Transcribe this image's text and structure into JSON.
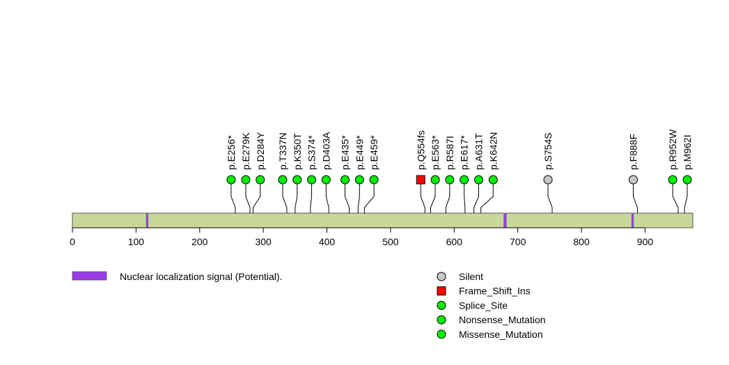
{
  "chart_data": {
    "type": "lollipop",
    "title": "",
    "xlabel": "",
    "ylabel": "",
    "protein_length": 975,
    "xlim": [
      0,
      975
    ],
    "ticks": [
      0,
      100,
      200,
      300,
      400,
      500,
      600,
      700,
      800,
      900
    ],
    "tick_labels": [
      "0",
      "100",
      "200",
      "300",
      "400",
      "500",
      "600",
      "700",
      "800",
      "900"
    ],
    "grid": false,
    "protein_color": "#c8d89b",
    "domains": [
      {
        "start": 116,
        "end": 119,
        "name": "Nuclear localization signal (Potential).",
        "color": "#9c3be8"
      },
      {
        "start": 678,
        "end": 682,
        "name": "Nuclear localization signal (Potential).",
        "color": "#9c3be8"
      },
      {
        "start": 879,
        "end": 882,
        "name": "Nuclear localization signal (Potential).",
        "color": "#9c3be8"
      }
    ],
    "domain_legend": [
      {
        "label": "Nuclear localization signal (Potential).",
        "color": "#9c3be8"
      }
    ],
    "mutations": [
      {
        "label": "p.E256*",
        "position": 256,
        "type": "Nonsense_Mutation"
      },
      {
        "label": "p.E279K",
        "position": 279,
        "type": "Missense_Mutation"
      },
      {
        "label": "p.D284Y",
        "position": 284,
        "type": "Missense_Mutation"
      },
      {
        "label": "p.T337N",
        "position": 337,
        "type": "Missense_Mutation"
      },
      {
        "label": "p.K350T",
        "position": 350,
        "type": "Missense_Mutation"
      },
      {
        "label": "p.S374*",
        "position": 374,
        "type": "Nonsense_Mutation"
      },
      {
        "label": "p.D403A",
        "position": 403,
        "type": "Missense_Mutation"
      },
      {
        "label": "p.E435*",
        "position": 435,
        "type": "Nonsense_Mutation"
      },
      {
        "label": "p.E449*",
        "position": 449,
        "type": "Nonsense_Mutation"
      },
      {
        "label": "p.E459*",
        "position": 459,
        "type": "Nonsense_Mutation"
      },
      {
        "label": "p.Q554fs",
        "position": 554,
        "type": "Frame_Shift_Ins"
      },
      {
        "label": "p.E563*",
        "position": 563,
        "type": "Nonsense_Mutation"
      },
      {
        "label": "p.R587I",
        "position": 587,
        "type": "Missense_Mutation"
      },
      {
        "label": "p.E617*",
        "position": 617,
        "type": "Nonsense_Mutation"
      },
      {
        "label": "p.A631T",
        "position": 631,
        "type": "Missense_Mutation"
      },
      {
        "label": "p.K642N",
        "position": 642,
        "type": "Missense_Mutation"
      },
      {
        "label": "p.S754S",
        "position": 754,
        "type": "Silent"
      },
      {
        "label": "p.F888F",
        "position": 888,
        "type": "Silent"
      },
      {
        "label": "p.R952W",
        "position": 952,
        "type": "Missense_Mutation"
      },
      {
        "label": "p.M962I",
        "position": 962,
        "type": "Missense_Mutation"
      }
    ],
    "mutation_legend": [
      {
        "label": "Silent",
        "color": "#c8c8c8",
        "shape": "circle"
      },
      {
        "label": "Frame_Shift_Ins",
        "color": "#ff0000",
        "shape": "square"
      },
      {
        "label": "Splice_Site",
        "color": "#00ee00",
        "shape": "circle"
      },
      {
        "label": "Nonsense_Mutation",
        "color": "#00ee00",
        "shape": "circle"
      },
      {
        "label": "Missense_Mutation",
        "color": "#00ee00",
        "shape": "circle"
      }
    ],
    "type_colors": {
      "Silent": "#c8c8c8",
      "Frame_Shift_Ins": "#ff0000",
      "Splice_Site": "#00ee00",
      "Nonsense_Mutation": "#00ee00",
      "Missense_Mutation": "#00ee00"
    }
  }
}
